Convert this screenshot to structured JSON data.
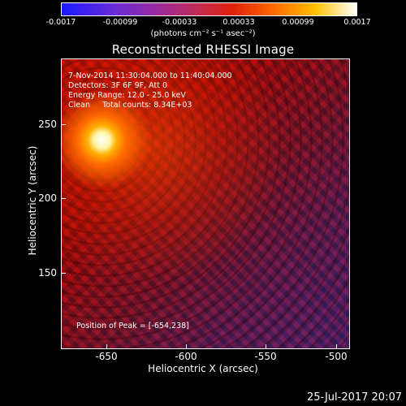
{
  "colorbar": {
    "tick_labels": [
      "-0.0017",
      "-0.00099",
      "-0.00033",
      "0.00033",
      "0.00099",
      "0.0017"
    ],
    "units_label": "(photons cm⁻² s⁻¹ asec⁻²)"
  },
  "title": "Reconstructed RHESSI Image",
  "overlay": {
    "time_range": "7-Nov-2014 11:30:04.000 to 11:40:04.000",
    "detectors": "Detectors: 3F 6F 9F, Att 0",
    "energy_range": "Energy Range: 12.0 - 25.0 keV",
    "clean_counts": "Clean     Total counts: 8.34E+03",
    "peak_position": "Position of Peak = [-654,238]"
  },
  "axes": {
    "x_label": "Heliocentric X (arcsec)",
    "y_label": "Heliocentric Y (arcsec)",
    "x_tick_labels": [
      "-650",
      "-600",
      "-550",
      "-500"
    ],
    "y_tick_labels": [
      "250",
      "200",
      "150"
    ]
  },
  "footer_date": "25-Jul-2017 20:07"
}
